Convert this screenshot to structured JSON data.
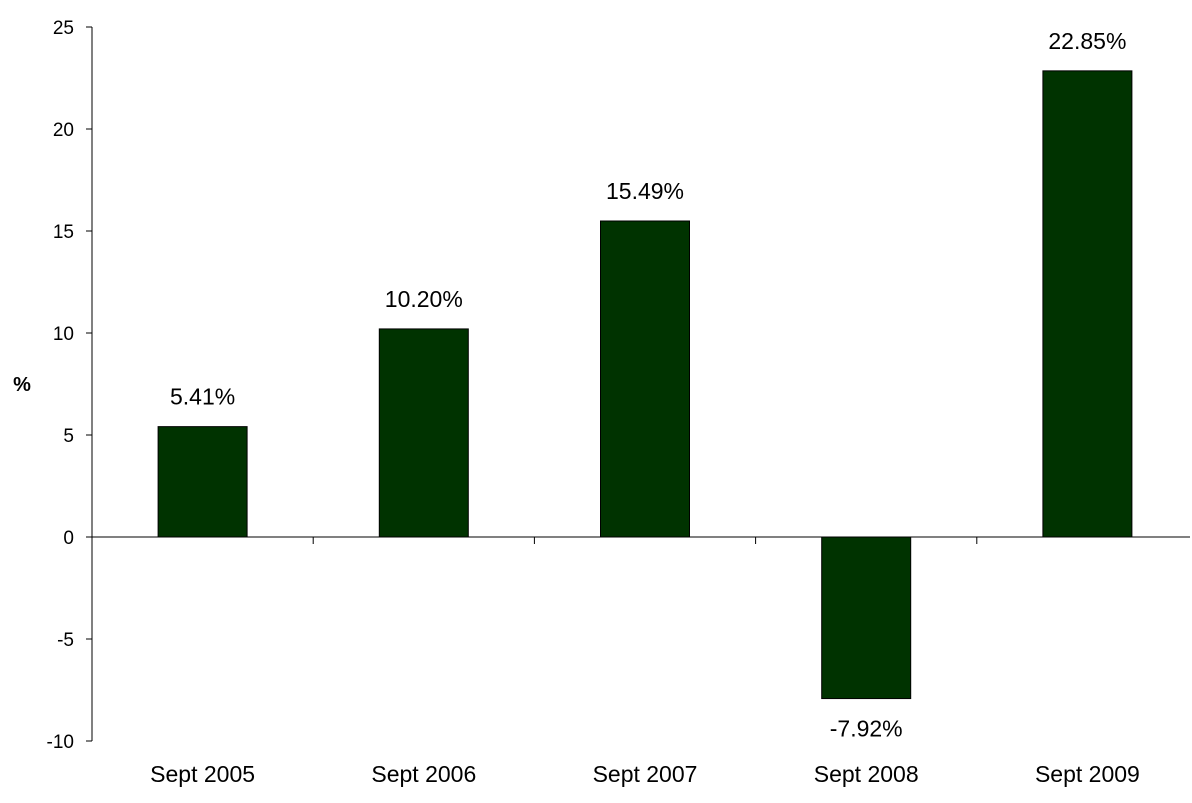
{
  "chart_data": {
    "type": "bar",
    "categories": [
      "Sept 2005",
      "Sept 2006",
      "Sept 2007",
      "Sept 2008",
      "Sept 2009"
    ],
    "values": [
      5.41,
      10.2,
      15.49,
      -7.92,
      22.85
    ],
    "data_labels": [
      "5.41%",
      "10.20%",
      "15.49%",
      "-7.92%",
      "22.85%"
    ],
    "ylabel": "%",
    "ylim": [
      -10,
      25
    ],
    "yticks": [
      -10,
      -5,
      0,
      5,
      10,
      15,
      20,
      25
    ],
    "grid": false,
    "bar_color": "#003300"
  }
}
